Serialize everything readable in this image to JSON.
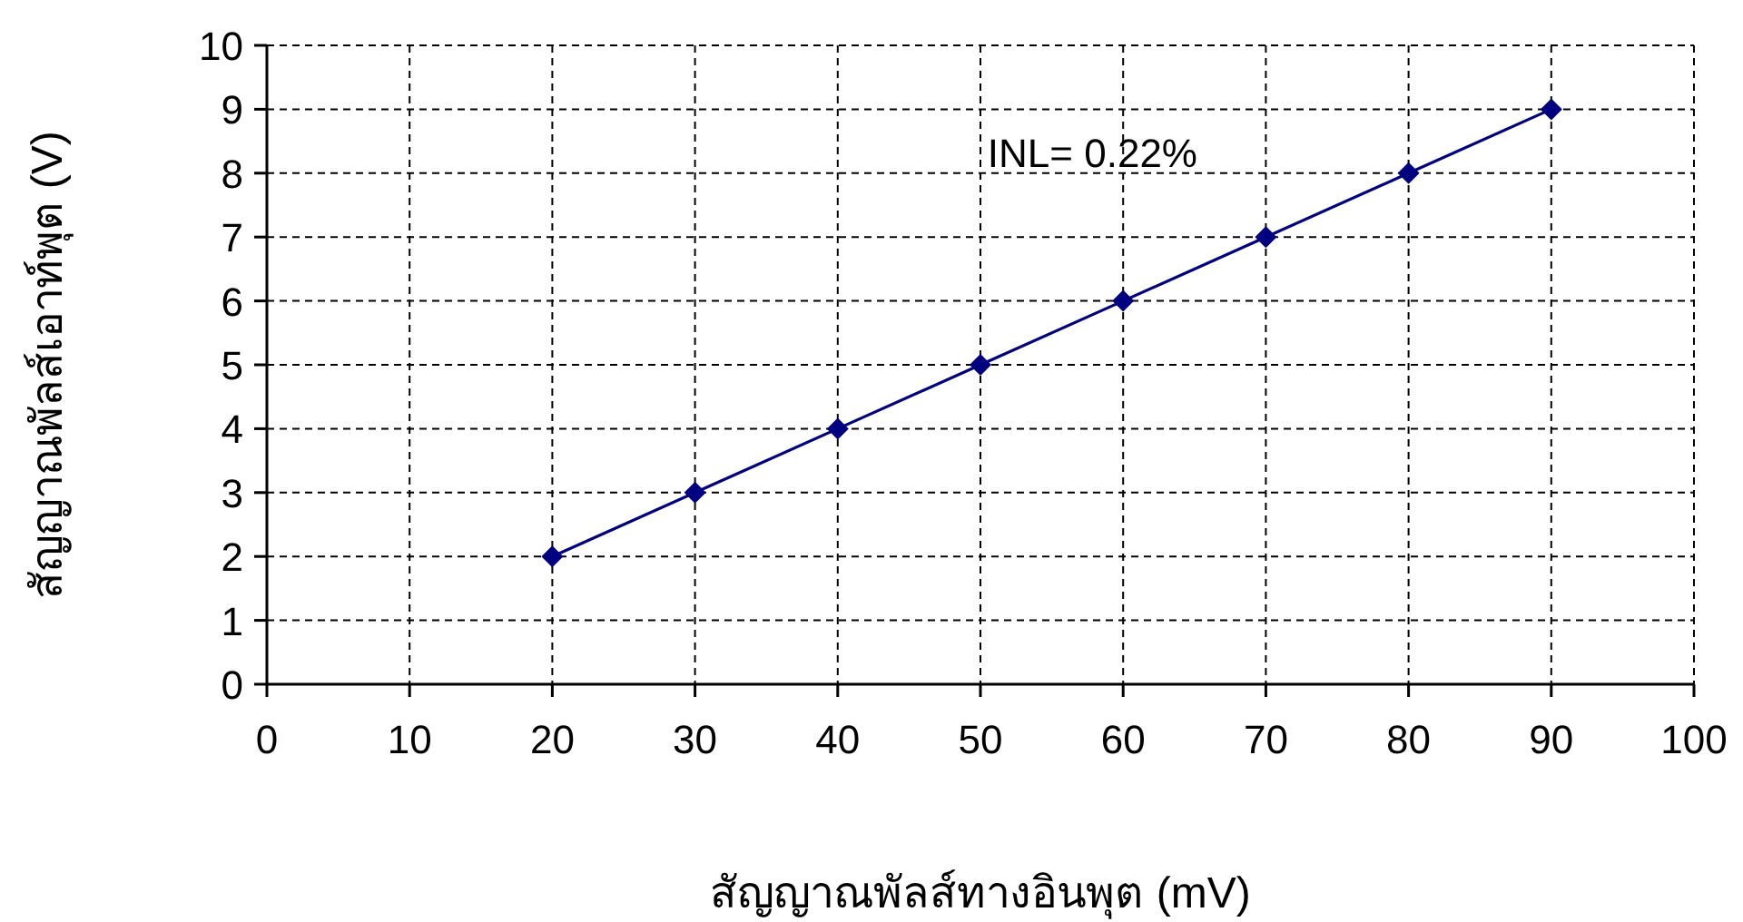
{
  "chart_data": {
    "type": "line",
    "xlabel": "สัญญาณพัลส์ทางอินพุต (mV)",
    "ylabel": "สัญญาณพัลส์เอาท์พุต (V)",
    "x": [
      20,
      30,
      40,
      50,
      60,
      70,
      80,
      90
    ],
    "series": [
      {
        "color": "#000080",
        "values": [
          2,
          3,
          4,
          5,
          6,
          7,
          8,
          9
        ]
      }
    ],
    "xlim": [
      0,
      100
    ],
    "xticks": [
      0,
      10,
      20,
      30,
      40,
      50,
      60,
      70,
      80,
      90,
      100
    ],
    "ylim": [
      0,
      10
    ],
    "yticks": [
      0,
      1,
      2,
      3,
      4,
      5,
      6,
      7,
      8,
      9,
      10
    ],
    "grid": true,
    "marker": "diamond",
    "line_style": "solid",
    "annotations": [
      "INL= 0.22%"
    ]
  }
}
